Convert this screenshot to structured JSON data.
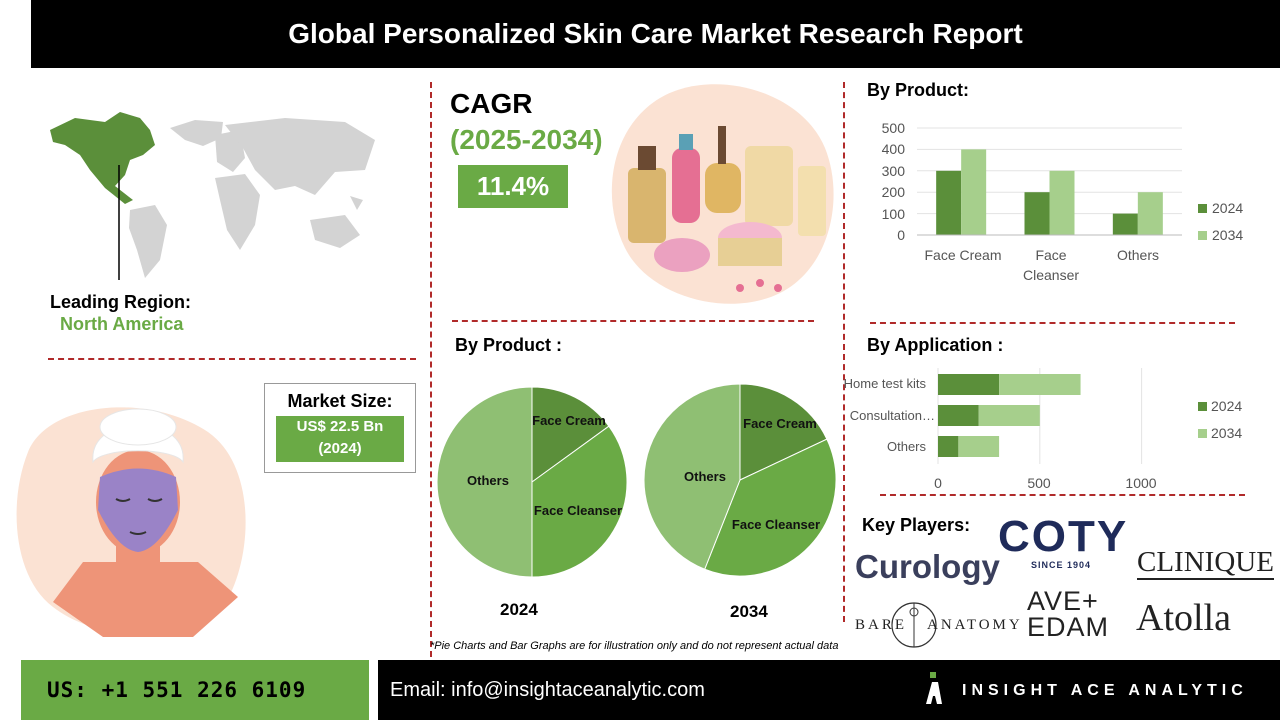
{
  "header": {
    "title": "Global Personalized Skin Care Market Research Report"
  },
  "region": {
    "leading_label": "Leading Region:",
    "leading_value": "North America"
  },
  "cagr": {
    "label": "CAGR",
    "period": "(2025-2034)",
    "value": "11.4%"
  },
  "market_size": {
    "label": "Market Size:",
    "value_line1": "US$ 22.5 Bn",
    "value_line2": "(2024)"
  },
  "colors": {
    "dark_green": "#5b8f3a",
    "mid_green": "#6aaa45",
    "light_green": "#a6cf8c",
    "pie_light": "#8fbf73",
    "accent_red": "#b02a2a"
  },
  "chart_data": [
    {
      "type": "bar",
      "title": "By Product:",
      "categories": [
        "Face Cream",
        "Face Cleanser",
        "Others"
      ],
      "series": [
        {
          "name": "2024",
          "values": [
            300,
            200,
            100
          ]
        },
        {
          "name": "2034",
          "values": [
            400,
            300,
            200
          ]
        }
      ],
      "yticks": [
        "500",
        "400",
        "300",
        "200",
        "100",
        "0"
      ],
      "ylim": [
        0,
        500
      ],
      "legend": "right"
    },
    {
      "type": "pie",
      "title": "By Product :",
      "caption": "2024",
      "slices": [
        {
          "label": "Face Cream",
          "value": 15
        },
        {
          "label": "Face Cleanser",
          "value": 35
        },
        {
          "label": "Others",
          "value": 50
        }
      ]
    },
    {
      "type": "pie",
      "caption": "2034",
      "slices": [
        {
          "label": "Face Cream",
          "value": 18
        },
        {
          "label": "Face Cleanser",
          "value": 38
        },
        {
          "label": "Others",
          "value": 44
        }
      ]
    },
    {
      "type": "bar",
      "orientation": "horizontal-stacked",
      "title": "By Application :",
      "categories": [
        "Home test kits",
        "Consultation…",
        "Others"
      ],
      "series": [
        {
          "name": "2024",
          "values": [
            300,
            200,
            100
          ]
        },
        {
          "name": "2034",
          "values": [
            400,
            300,
            200
          ]
        }
      ],
      "xticks": [
        "0",
        "500",
        "1000"
      ],
      "xlim": [
        0,
        1100
      ],
      "legend": "right"
    }
  ],
  "key_players": {
    "label": "Key Players:",
    "logos": [
      "Curology",
      "COTY",
      "SINCE 1904",
      "CLINIQUE",
      "BARE",
      "ANATOMY",
      "AVE+",
      "EDAM",
      "Atolla"
    ]
  },
  "disclaimer": "*Pie Charts and Bar Graphs are for illustration only and do not represent actual data",
  "footer": {
    "phone": "US: +1 551 226 6109",
    "email": "Email: info@insightaceanalytic.com",
    "brand": "INSIGHT ACE ANALYTIC"
  }
}
